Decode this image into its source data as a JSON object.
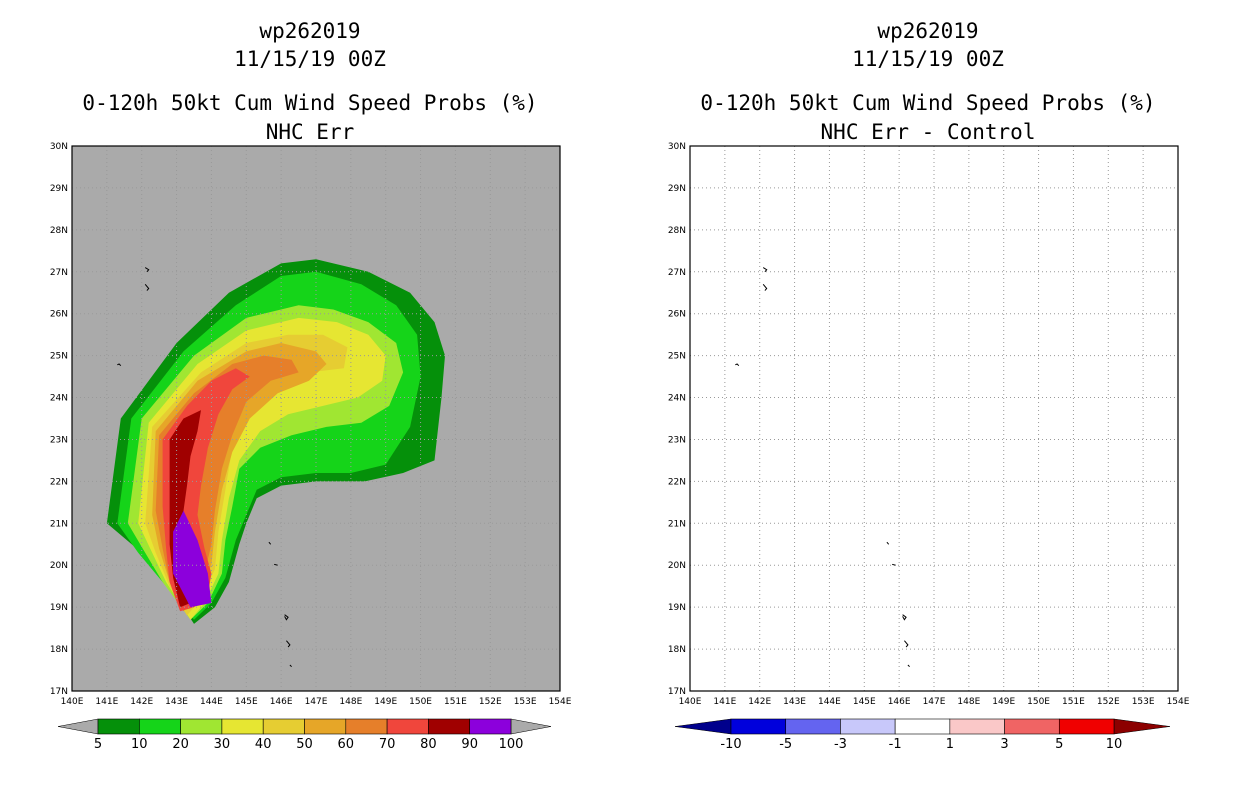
{
  "chart_data": [
    {
      "type": "contour_map",
      "storm_id": "wp262019",
      "datetime": "11/15/19 00Z",
      "title": "0-120h 50kt Cum Wind Speed Probs (%)",
      "subtitle": "NHC Err",
      "xlim": [
        140,
        154
      ],
      "ylim": [
        17,
        30
      ],
      "x_ticks": [
        "140E",
        "141E",
        "142E",
        "143E",
        "144E",
        "145E",
        "146E",
        "147E",
        "148E",
        "149E",
        "150E",
        "151E",
        "152E",
        "153E",
        "154E"
      ],
      "y_ticks": [
        "17N",
        "18N",
        "19N",
        "20N",
        "21N",
        "22N",
        "23N",
        "24N",
        "25N",
        "26N",
        "27N",
        "28N",
        "29N",
        "30N"
      ],
      "grid": true,
      "background_color": "#aaaaaa",
      "contour_levels": [
        {
          "threshold": 5,
          "color": "#05900a"
        },
        {
          "threshold": 10,
          "color": "#15d419"
        },
        {
          "threshold": 20,
          "color": "#a0e632"
        },
        {
          "threshold": 30,
          "color": "#e6e632"
        },
        {
          "threshold": 40,
          "color": "#e6cd32"
        },
        {
          "threshold": 50,
          "color": "#e6a628"
        },
        {
          "threshold": 60,
          "color": "#e67f2a"
        },
        {
          "threshold": 70,
          "color": "#f0463c"
        },
        {
          "threshold": 80,
          "color": "#a00000"
        },
        {
          "threshold": 90,
          "color": "#8c00dc"
        }
      ],
      "contour_shapes": [
        [
          [
            141,
            21
          ],
          [
            141.4,
            23.5
          ],
          [
            143,
            25.3
          ],
          [
            144.5,
            26.5
          ],
          [
            146,
            27.2
          ],
          [
            147,
            27.3
          ],
          [
            148.5,
            27
          ],
          [
            149.7,
            26.5
          ],
          [
            150.4,
            25.8
          ],
          [
            150.7,
            25
          ],
          [
            150.6,
            24
          ],
          [
            150.4,
            22.5
          ],
          [
            149.5,
            22.2
          ],
          [
            148.4,
            22
          ],
          [
            147,
            22
          ],
          [
            146,
            21.9
          ],
          [
            145.3,
            21.6
          ],
          [
            145,
            21
          ],
          [
            144.8,
            20.5
          ],
          [
            144.5,
            19.6
          ],
          [
            144.1,
            19
          ],
          [
            143.5,
            18.6
          ],
          [
            142.8,
            19.5
          ],
          [
            142,
            20.3
          ],
          [
            141,
            21
          ]
        ],
        [
          [
            141.3,
            21
          ],
          [
            141.7,
            23.5
          ],
          [
            143.2,
            25.1
          ],
          [
            144.7,
            26.2
          ],
          [
            146,
            26.9
          ],
          [
            147,
            27
          ],
          [
            148.3,
            26.7
          ],
          [
            149.3,
            26.2
          ],
          [
            149.9,
            25.5
          ],
          [
            150,
            24.5
          ],
          [
            149.7,
            23.3
          ],
          [
            149,
            22.4
          ],
          [
            148,
            22.2
          ],
          [
            147,
            22.2
          ],
          [
            146,
            22.1
          ],
          [
            145.3,
            21.8
          ],
          [
            145,
            21.2
          ],
          [
            144.7,
            20.6
          ],
          [
            144.4,
            19.7
          ],
          [
            144,
            19.1
          ],
          [
            143.5,
            18.7
          ],
          [
            142.6,
            19.6
          ],
          [
            141.9,
            20.3
          ],
          [
            141.3,
            21
          ]
        ],
        [
          [
            141.6,
            21
          ],
          [
            142,
            23.5
          ],
          [
            143.5,
            25
          ],
          [
            145,
            25.9
          ],
          [
            146.5,
            26.2
          ],
          [
            147.5,
            26.1
          ],
          [
            148.5,
            25.8
          ],
          [
            149.3,
            25.3
          ],
          [
            149.5,
            24.6
          ],
          [
            149.1,
            23.8
          ],
          [
            148.3,
            23.4
          ],
          [
            147.3,
            23.3
          ],
          [
            146.3,
            23.1
          ],
          [
            145.4,
            22.8
          ],
          [
            144.8,
            22.3
          ],
          [
            144.6,
            21.4
          ],
          [
            144.4,
            20.6
          ],
          [
            144.3,
            19.8
          ],
          [
            143.9,
            19.1
          ],
          [
            143.4,
            18.7
          ],
          [
            142.6,
            19.6
          ],
          [
            142.1,
            20.3
          ],
          [
            141.6,
            21
          ]
        ],
        [
          [
            141.9,
            21
          ],
          [
            142.2,
            23.4
          ],
          [
            143.6,
            24.8
          ],
          [
            145,
            25.6
          ],
          [
            146.5,
            25.9
          ],
          [
            147.6,
            25.8
          ],
          [
            148.5,
            25.5
          ],
          [
            149,
            25
          ],
          [
            148.9,
            24.4
          ],
          [
            148.2,
            24
          ],
          [
            147.2,
            23.8
          ],
          [
            146.2,
            23.6
          ],
          [
            145.4,
            23.2
          ],
          [
            144.8,
            22.5
          ],
          [
            144.5,
            21.6
          ],
          [
            144.3,
            20.6
          ],
          [
            144.2,
            19.8
          ],
          [
            143.8,
            19.1
          ],
          [
            143.4,
            18.7
          ],
          [
            142.7,
            19.6
          ],
          [
            142.3,
            20.3
          ],
          [
            141.9,
            21
          ]
        ],
        [
          [
            142.1,
            21
          ],
          [
            142.3,
            23.3
          ],
          [
            143.7,
            24.6
          ],
          [
            145,
            25.3
          ],
          [
            146.2,
            25.5
          ],
          [
            147.2,
            25.5
          ],
          [
            147.9,
            25.2
          ],
          [
            147.8,
            24.7
          ],
          [
            146.8,
            24.6
          ],
          [
            145.8,
            24.2
          ],
          [
            145,
            23.6
          ],
          [
            144.6,
            22.8
          ],
          [
            144.4,
            21.8
          ],
          [
            144.2,
            20.8
          ],
          [
            144.1,
            19.9
          ],
          [
            143.7,
            19.2
          ],
          [
            143.3,
            18.8
          ],
          [
            142.8,
            19.5
          ],
          [
            142.4,
            20.3
          ],
          [
            142.1,
            21
          ]
        ],
        [
          [
            142.3,
            21.2
          ],
          [
            142.4,
            23.2
          ],
          [
            143.6,
            24.4
          ],
          [
            145,
            25.1
          ],
          [
            146,
            25.3
          ],
          [
            147,
            25.1
          ],
          [
            147.3,
            24.8
          ],
          [
            146.8,
            24.4
          ],
          [
            145.9,
            24.1
          ],
          [
            145.1,
            23.5
          ],
          [
            144.6,
            22.7
          ],
          [
            144.3,
            21.8
          ],
          [
            144.1,
            20.8
          ],
          [
            144,
            20
          ],
          [
            143.6,
            19.3
          ],
          [
            143.2,
            18.9
          ],
          [
            142.8,
            19.6
          ],
          [
            142.5,
            20.4
          ],
          [
            142.3,
            21.2
          ]
        ],
        [
          [
            142.4,
            21.3
          ],
          [
            142.5,
            23.1
          ],
          [
            143.5,
            24.1
          ],
          [
            144.6,
            24.8
          ],
          [
            145.5,
            25
          ],
          [
            146.3,
            24.9
          ],
          [
            146.5,
            24.6
          ],
          [
            145.7,
            24.4
          ],
          [
            145,
            23.9
          ],
          [
            144.6,
            23.1
          ],
          [
            144.3,
            22.3
          ],
          [
            144.1,
            21.3
          ],
          [
            144,
            20.5
          ],
          [
            143.8,
            19.8
          ],
          [
            143.5,
            19.2
          ],
          [
            143.2,
            18.9
          ],
          [
            142.8,
            19.6
          ],
          [
            142.6,
            20.4
          ],
          [
            142.4,
            21.3
          ]
        ],
        [
          [
            142.6,
            21.4
          ],
          [
            142.6,
            23
          ],
          [
            143.3,
            23.8
          ],
          [
            144,
            24.4
          ],
          [
            144.7,
            24.7
          ],
          [
            145.1,
            24.5
          ],
          [
            144.6,
            24.2
          ],
          [
            144.2,
            23.6
          ],
          [
            143.9,
            22.8
          ],
          [
            143.7,
            21.9
          ],
          [
            143.6,
            21.2
          ],
          [
            143.8,
            20.4
          ],
          [
            144,
            19.8
          ],
          [
            143.9,
            19.3
          ],
          [
            143.5,
            19
          ],
          [
            143.1,
            18.9
          ],
          [
            142.8,
            19.6
          ],
          [
            142.7,
            20.4
          ],
          [
            142.6,
            21.4
          ]
        ],
        [
          [
            142.8,
            21.5
          ],
          [
            142.8,
            23
          ],
          [
            143.2,
            23.5
          ],
          [
            143.7,
            23.7
          ],
          [
            143.6,
            23.2
          ],
          [
            143.4,
            22.6
          ],
          [
            143.3,
            21.9
          ],
          [
            143.2,
            21.3
          ],
          [
            143.3,
            20.7
          ],
          [
            143.6,
            20.2
          ],
          [
            143.9,
            19.7
          ],
          [
            143.8,
            19.3
          ],
          [
            143.4,
            19.1
          ],
          [
            143.1,
            19
          ],
          [
            142.9,
            19.7
          ],
          [
            142.8,
            20.5
          ],
          [
            142.8,
            21.5
          ]
        ],
        [
          [
            142.9,
            20.8
          ],
          [
            143.2,
            21.3
          ],
          [
            143.6,
            20.6
          ],
          [
            143.9,
            19.8
          ],
          [
            144,
            19.1
          ],
          [
            143.4,
            19
          ],
          [
            142.9,
            19.8
          ],
          [
            142.9,
            20.8
          ]
        ]
      ],
      "islands": [
        [
          [
            142.1,
            27.1
          ],
          [
            142.2,
            27.05
          ],
          [
            142.15,
            27
          ]
        ],
        [
          [
            142.1,
            26.7
          ],
          [
            142.2,
            26.6
          ],
          [
            142.15,
            26.55
          ]
        ],
        [
          [
            141.3,
            24.78
          ],
          [
            141.35,
            24.8
          ],
          [
            141.4,
            24.76
          ]
        ],
        [
          [
            145.65,
            20.55
          ],
          [
            145.7,
            20.5
          ]
        ],
        [
          [
            145.8,
            20.02
          ],
          [
            145.9,
            20.0
          ]
        ],
        [
          [
            146.1,
            18.82
          ],
          [
            146.2,
            18.76
          ],
          [
            146.15,
            18.7
          ],
          [
            146.1,
            18.78
          ]
        ],
        [
          [
            146.15,
            18.2
          ],
          [
            146.25,
            18.1
          ],
          [
            146.2,
            18.05
          ]
        ],
        [
          [
            146.25,
            17.62
          ],
          [
            146.3,
            17.58
          ]
        ]
      ],
      "colorbar": {
        "labels": [
          "5",
          "10",
          "20",
          "30",
          "40",
          "50",
          "60",
          "70",
          "80",
          "90",
          "100"
        ],
        "colors": [
          "#05900a",
          "#15d419",
          "#a0e632",
          "#e6e632",
          "#e6cd32",
          "#e6a628",
          "#e67f2a",
          "#f0463c",
          "#a00000",
          "#8c00dc"
        ],
        "end_colors": [
          "#aaaaaa",
          "#aaaaaa"
        ]
      }
    },
    {
      "type": "contour_map",
      "storm_id": "wp262019",
      "datetime": "11/15/19 00Z",
      "title": "0-120h 50kt Cum Wind Speed Probs (%)",
      "subtitle": "NHC Err - Control",
      "xlim": [
        140,
        154
      ],
      "ylim": [
        17,
        30
      ],
      "x_ticks": [
        "140E",
        "141E",
        "142E",
        "143E",
        "144E",
        "145E",
        "146E",
        "147E",
        "148E",
        "149E",
        "150E",
        "151E",
        "152E",
        "153E",
        "154E"
      ],
      "y_ticks": [
        "17N",
        "18N",
        "19N",
        "20N",
        "21N",
        "22N",
        "23N",
        "24N",
        "25N",
        "26N",
        "27N",
        "28N",
        "29N",
        "30N"
      ],
      "grid": true,
      "background_color": "#ffffff",
      "difference_values": "all within -1 to 1 (no shaded differences)",
      "colorbar": {
        "labels": [
          "-10",
          "-5",
          "-3",
          "-1",
          "1",
          "3",
          "5",
          "10"
        ],
        "colors": [
          "#0000dc",
          "#6464f0",
          "#c8c8fa",
          "#ffffff",
          "#fac8c8",
          "#f06464",
          "#f00000"
        ],
        "end_colors": [
          "#00008c",
          "#8c0000"
        ]
      }
    }
  ]
}
